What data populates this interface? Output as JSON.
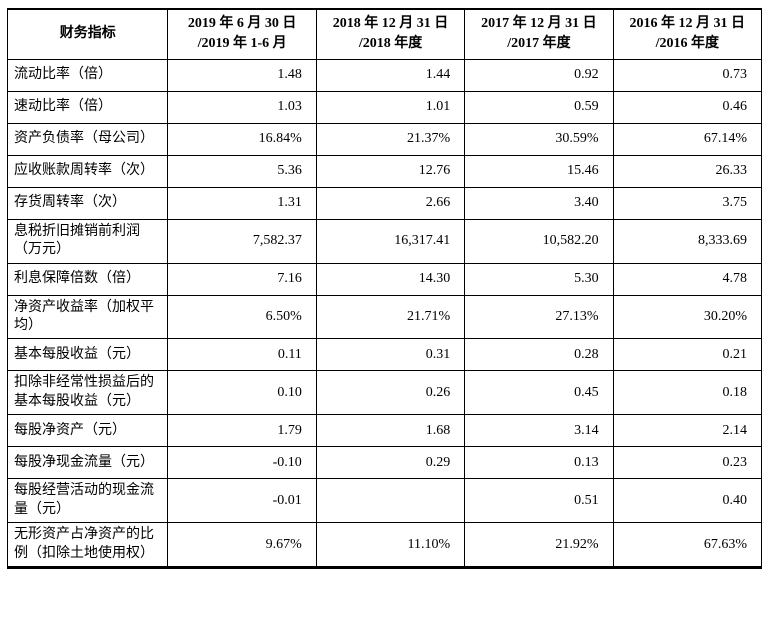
{
  "table": {
    "header": {
      "label": "财务指标",
      "columns": [
        {
          "line1": "2019 年 6 月 30 日",
          "line2": "/2019 年 1-6 月"
        },
        {
          "line1": "2018 年 12 月 31 日",
          "line2": "/2018 年度"
        },
        {
          "line1": "2017 年 12 月 31 日",
          "line2": "/2017 年度"
        },
        {
          "line1": "2016 年 12 月 31 日",
          "line2": "/2016 年度"
        }
      ]
    },
    "rows": [
      {
        "label": "流动比率（倍）",
        "values": [
          "1.48",
          "1.44",
          "0.92",
          "0.73"
        ]
      },
      {
        "label": "速动比率（倍）",
        "values": [
          "1.03",
          "1.01",
          "0.59",
          "0.46"
        ]
      },
      {
        "label": "资产负债率（母公司）",
        "values": [
          "16.84%",
          "21.37%",
          "30.59%",
          "67.14%"
        ]
      },
      {
        "label": "应收账款周转率（次）",
        "values": [
          "5.36",
          "12.76",
          "15.46",
          "26.33"
        ]
      },
      {
        "label": "存货周转率（次）",
        "values": [
          "1.31",
          "2.66",
          "3.40",
          "3.75"
        ]
      },
      {
        "label": "息税折旧摊销前利润（万元）",
        "values": [
          "7,582.37",
          "16,317.41",
          "10,582.20",
          "8,333.69"
        ]
      },
      {
        "label": "利息保障倍数（倍）",
        "values": [
          "7.16",
          "14.30",
          "5.30",
          "4.78"
        ]
      },
      {
        "label": "净资产收益率（加权平均）",
        "values": [
          "6.50%",
          "21.71%",
          "27.13%",
          "30.20%"
        ]
      },
      {
        "label": "基本每股收益（元）",
        "values": [
          "0.11",
          "0.31",
          "0.28",
          "0.21"
        ]
      },
      {
        "label": "扣除非经常性损益后的基本每股收益（元）",
        "values": [
          "0.10",
          "0.26",
          "0.45",
          "0.18"
        ]
      },
      {
        "label": "每股净资产（元）",
        "values": [
          "1.79",
          "1.68",
          "3.14",
          "2.14"
        ]
      },
      {
        "label": "每股净现金流量（元）",
        "values": [
          "-0.10",
          "0.29",
          "0.13",
          "0.23"
        ]
      },
      {
        "label": "每股经营活动的现金流量（元）",
        "values": [
          "-0.01",
          "",
          "0.51",
          "0.40"
        ]
      },
      {
        "label": "无形资产占净资产的比例（扣除土地使用权）",
        "values": [
          "9.67%",
          "11.10%",
          "21.92%",
          "67.63%"
        ]
      }
    ]
  }
}
